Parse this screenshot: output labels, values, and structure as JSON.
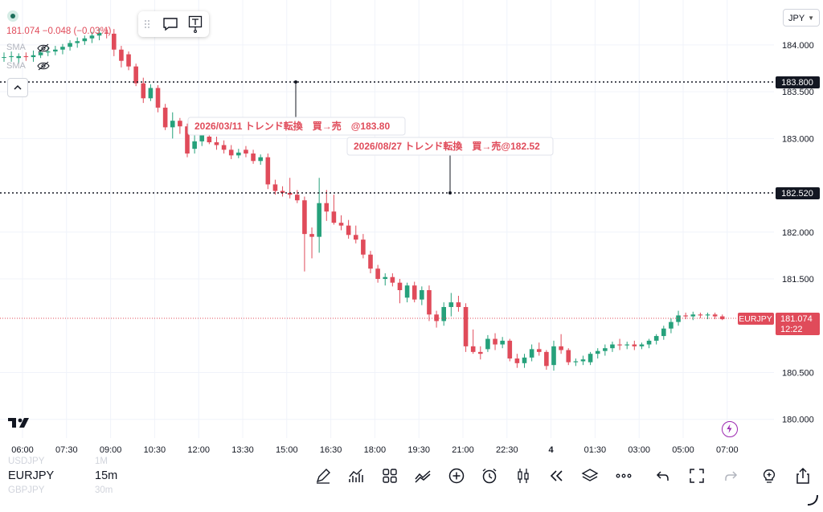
{
  "instrument": {
    "price": "181.074",
    "change": "−0.048 (−0.03%)",
    "indicator_1": "SMA",
    "indicator_2": "SMA"
  },
  "currency_selector": {
    "value": "JPY"
  },
  "price_axis": {
    "ticks": [
      {
        "label": "184.000",
        "value": 184.0
      },
      {
        "label": "183.500",
        "value": 183.5
      },
      {
        "label": "183.000",
        "value": 183.0
      },
      {
        "label": "182.000",
        "value": 182.0
      },
      {
        "label": "181.500",
        "value": 181.5
      },
      {
        "label": "180.500",
        "value": 180.5
      },
      {
        "label": "180.000",
        "value": 180.0
      }
    ],
    "horizontal_line_1": {
      "label": "183.800",
      "value": 183.8
    },
    "horizontal_line_2": {
      "label": "182.520",
      "value": 182.52
    },
    "last_price_symbol": "EURJPY",
    "last_price_value": "181.074",
    "last_price_countdown": "12:22"
  },
  "time_axis": [
    "06:00",
    "07:30",
    "09:00",
    "10:30",
    "12:00",
    "13:30",
    "15:00",
    "16:30",
    "18:00",
    "19:30",
    "21:00",
    "22:30",
    "4",
    "01:30",
    "03:00",
    "05:00",
    "07:00"
  ],
  "annotations": {
    "note_1": "2026/03/11 トレンド転換　買→売　@183.80",
    "note_2": "2026/08/27 トレンド転換　買→売@182.52"
  },
  "bottom_bar": {
    "symbol_prev": "USDJPY",
    "symbol_current": "EURJPY",
    "symbol_next": "GBPJPY",
    "interval_prev": "1M",
    "interval_current": "15m",
    "interval_next": "30m"
  },
  "colors": {
    "up": "#26a17b",
    "down": "#e04b5a",
    "last_price": "#e04b5a"
  },
  "chart_data": {
    "type": "candlestick",
    "symbol": "EURJPY",
    "interval": "15m",
    "ylim": [
      179.8,
      184.48
    ],
    "y_ticks": [
      180.0,
      180.5,
      181.5,
      182.0,
      183.0,
      183.5,
      184.0
    ],
    "candles": [
      {
        "o": 183.87,
        "h": 183.92,
        "l": 183.82,
        "c": 183.87
      },
      {
        "o": 183.87,
        "h": 183.93,
        "l": 183.82,
        "c": 183.88
      },
      {
        "o": 183.86,
        "h": 183.91,
        "l": 183.8,
        "c": 183.88
      },
      {
        "o": 183.88,
        "h": 183.92,
        "l": 183.83,
        "c": 183.87
      },
      {
        "o": 183.87,
        "h": 183.94,
        "l": 183.82,
        "c": 183.89
      },
      {
        "o": 183.89,
        "h": 183.95,
        "l": 183.86,
        "c": 183.92
      },
      {
        "o": 183.92,
        "h": 183.97,
        "l": 183.88,
        "c": 183.93
      },
      {
        "o": 183.93,
        "h": 183.99,
        "l": 183.89,
        "c": 183.95
      },
      {
        "o": 183.95,
        "h": 184.01,
        "l": 183.9,
        "c": 183.98
      },
      {
        "o": 183.98,
        "h": 184.05,
        "l": 183.94,
        "c": 184.02
      },
      {
        "o": 184.02,
        "h": 184.08,
        "l": 183.97,
        "c": 184.04
      },
      {
        "o": 184.04,
        "h": 184.1,
        "l": 184.0,
        "c": 184.07
      },
      {
        "o": 184.07,
        "h": 184.14,
        "l": 184.02,
        "c": 184.1
      },
      {
        "o": 184.1,
        "h": 184.18,
        "l": 184.05,
        "c": 184.13
      },
      {
        "o": 184.13,
        "h": 184.19,
        "l": 184.07,
        "c": 184.12
      },
      {
        "o": 184.12,
        "h": 184.17,
        "l": 183.88,
        "c": 183.95
      },
      {
        "o": 183.95,
        "h": 183.99,
        "l": 183.76,
        "c": 183.83
      },
      {
        "o": 183.9,
        "h": 183.93,
        "l": 183.73,
        "c": 183.77
      },
      {
        "o": 183.77,
        "h": 183.8,
        "l": 183.56,
        "c": 183.59
      },
      {
        "o": 183.59,
        "h": 183.65,
        "l": 183.38,
        "c": 183.43
      },
      {
        "o": 183.43,
        "h": 183.58,
        "l": 183.4,
        "c": 183.54
      },
      {
        "o": 183.54,
        "h": 183.57,
        "l": 183.28,
        "c": 183.33
      },
      {
        "o": 183.33,
        "h": 183.37,
        "l": 183.09,
        "c": 183.12
      },
      {
        "o": 183.12,
        "h": 183.28,
        "l": 183.0,
        "c": 183.19
      },
      {
        "o": 183.19,
        "h": 183.22,
        "l": 183.05,
        "c": 183.13
      },
      {
        "o": 183.13,
        "h": 183.16,
        "l": 182.8,
        "c": 182.84
      },
      {
        "o": 182.89,
        "h": 183.05,
        "l": 182.84,
        "c": 182.97
      },
      {
        "o": 182.97,
        "h": 183.1,
        "l": 182.92,
        "c": 183.05
      },
      {
        "o": 183.02,
        "h": 183.06,
        "l": 182.94,
        "c": 182.96
      },
      {
        "o": 182.96,
        "h": 183.02,
        "l": 182.88,
        "c": 182.93
      },
      {
        "o": 182.93,
        "h": 182.98,
        "l": 182.84,
        "c": 182.88
      },
      {
        "o": 182.88,
        "h": 182.93,
        "l": 182.78,
        "c": 182.82
      },
      {
        "o": 182.82,
        "h": 182.89,
        "l": 182.79,
        "c": 182.85
      },
      {
        "o": 182.88,
        "h": 182.92,
        "l": 182.8,
        "c": 182.84
      },
      {
        "o": 182.84,
        "h": 182.88,
        "l": 182.73,
        "c": 182.76
      },
      {
        "o": 182.76,
        "h": 182.83,
        "l": 182.72,
        "c": 182.8
      },
      {
        "o": 182.8,
        "h": 182.84,
        "l": 182.46,
        "c": 182.51
      },
      {
        "o": 182.51,
        "h": 182.56,
        "l": 182.4,
        "c": 182.44
      },
      {
        "o": 182.44,
        "h": 182.49,
        "l": 182.38,
        "c": 182.42
      },
      {
        "o": 182.42,
        "h": 182.58,
        "l": 182.36,
        "c": 182.4
      },
      {
        "o": 182.4,
        "h": 182.45,
        "l": 182.31,
        "c": 182.34
      },
      {
        "o": 182.34,
        "h": 182.38,
        "l": 181.58,
        "c": 181.98
      },
      {
        "o": 181.98,
        "h": 182.05,
        "l": 181.72,
        "c": 181.95
      },
      {
        "o": 181.95,
        "h": 182.58,
        "l": 181.78,
        "c": 182.31
      },
      {
        "o": 182.31,
        "h": 182.45,
        "l": 182.12,
        "c": 182.22
      },
      {
        "o": 182.22,
        "h": 182.4,
        "l": 182.08,
        "c": 182.1
      },
      {
        "o": 182.1,
        "h": 182.18,
        "l": 182.02,
        "c": 182.07
      },
      {
        "o": 182.07,
        "h": 182.13,
        "l": 181.93,
        "c": 181.97
      },
      {
        "o": 181.97,
        "h": 182.07,
        "l": 181.88,
        "c": 181.92
      },
      {
        "o": 181.92,
        "h": 181.98,
        "l": 181.72,
        "c": 181.76
      },
      {
        "o": 181.76,
        "h": 181.8,
        "l": 181.56,
        "c": 181.61
      },
      {
        "o": 181.61,
        "h": 181.65,
        "l": 181.46,
        "c": 181.5
      },
      {
        "o": 181.5,
        "h": 181.56,
        "l": 181.43,
        "c": 181.52
      },
      {
        "o": 181.52,
        "h": 181.56,
        "l": 181.42,
        "c": 181.46
      },
      {
        "o": 181.46,
        "h": 181.5,
        "l": 181.24,
        "c": 181.38
      },
      {
        "o": 181.3,
        "h": 181.46,
        "l": 181.25,
        "c": 181.43
      },
      {
        "o": 181.43,
        "h": 181.47,
        "l": 181.25,
        "c": 181.28
      },
      {
        "o": 181.28,
        "h": 181.42,
        "l": 181.22,
        "c": 181.38
      },
      {
        "o": 181.38,
        "h": 181.43,
        "l": 181.05,
        "c": 181.12
      },
      {
        "o": 181.12,
        "h": 181.16,
        "l": 180.98,
        "c": 181.05
      },
      {
        "o": 181.05,
        "h": 181.25,
        "l": 181.0,
        "c": 181.2
      },
      {
        "o": 181.2,
        "h": 181.35,
        "l": 181.1,
        "c": 181.25
      },
      {
        "o": 181.25,
        "h": 181.32,
        "l": 181.15,
        "c": 181.2
      },
      {
        "o": 181.2,
        "h": 181.24,
        "l": 180.72,
        "c": 180.78
      },
      {
        "o": 180.78,
        "h": 180.96,
        "l": 180.7,
        "c": 180.72
      },
      {
        "o": 180.72,
        "h": 180.78,
        "l": 180.64,
        "c": 180.7
      },
      {
        "o": 180.75,
        "h": 180.9,
        "l": 180.72,
        "c": 180.86
      },
      {
        "o": 180.86,
        "h": 180.92,
        "l": 180.74,
        "c": 180.8
      },
      {
        "o": 180.8,
        "h": 180.88,
        "l": 180.76,
        "c": 180.84
      },
      {
        "o": 180.84,
        "h": 180.86,
        "l": 180.62,
        "c": 180.65
      },
      {
        "o": 180.65,
        "h": 180.7,
        "l": 180.55,
        "c": 180.6
      },
      {
        "o": 180.6,
        "h": 180.7,
        "l": 180.55,
        "c": 180.66
      },
      {
        "o": 180.66,
        "h": 180.8,
        "l": 180.62,
        "c": 180.75
      },
      {
        "o": 180.75,
        "h": 180.82,
        "l": 180.68,
        "c": 180.72
      },
      {
        "o": 180.72,
        "h": 180.74,
        "l": 180.53,
        "c": 180.57
      },
      {
        "o": 180.58,
        "h": 180.84,
        "l": 180.52,
        "c": 180.78
      },
      {
        "o": 180.78,
        "h": 180.91,
        "l": 180.7,
        "c": 180.74
      },
      {
        "o": 180.74,
        "h": 180.76,
        "l": 180.58,
        "c": 180.61
      },
      {
        "o": 180.61,
        "h": 180.65,
        "l": 180.57,
        "c": 180.62
      },
      {
        "o": 180.62,
        "h": 180.68,
        "l": 180.58,
        "c": 180.64
      },
      {
        "o": 180.61,
        "h": 180.72,
        "l": 180.58,
        "c": 180.7
      },
      {
        "o": 180.7,
        "h": 180.76,
        "l": 180.65,
        "c": 180.73
      },
      {
        "o": 180.73,
        "h": 180.8,
        "l": 180.68,
        "c": 180.76
      },
      {
        "o": 180.76,
        "h": 180.83,
        "l": 180.72,
        "c": 180.8
      },
      {
        "o": 180.8,
        "h": 180.86,
        "l": 180.74,
        "c": 180.79
      },
      {
        "o": 180.79,
        "h": 180.83,
        "l": 180.75,
        "c": 180.8
      },
      {
        "o": 180.8,
        "h": 180.84,
        "l": 180.74,
        "c": 180.78
      },
      {
        "o": 180.78,
        "h": 180.82,
        "l": 180.75,
        "c": 180.8
      },
      {
        "o": 180.8,
        "h": 180.86,
        "l": 180.76,
        "c": 180.84
      },
      {
        "o": 180.84,
        "h": 180.91,
        "l": 180.8,
        "c": 180.89
      },
      {
        "o": 180.89,
        "h": 181.0,
        "l": 180.85,
        "c": 180.97
      },
      {
        "o": 180.97,
        "h": 181.08,
        "l": 180.92,
        "c": 181.04
      },
      {
        "o": 181.04,
        "h": 181.16,
        "l": 181.0,
        "c": 181.11
      },
      {
        "o": 181.11,
        "h": 181.14,
        "l": 181.07,
        "c": 181.1
      },
      {
        "o": 181.1,
        "h": 181.15,
        "l": 181.06,
        "c": 181.12
      },
      {
        "o": 181.12,
        "h": 181.14,
        "l": 181.08,
        "c": 181.11
      },
      {
        "o": 181.11,
        "h": 181.14,
        "l": 181.07,
        "c": 181.12
      },
      {
        "o": 181.12,
        "h": 181.14,
        "l": 181.07,
        "c": 181.1
      },
      {
        "o": 181.1,
        "h": 181.12,
        "l": 181.06,
        "c": 181.07
      }
    ]
  }
}
